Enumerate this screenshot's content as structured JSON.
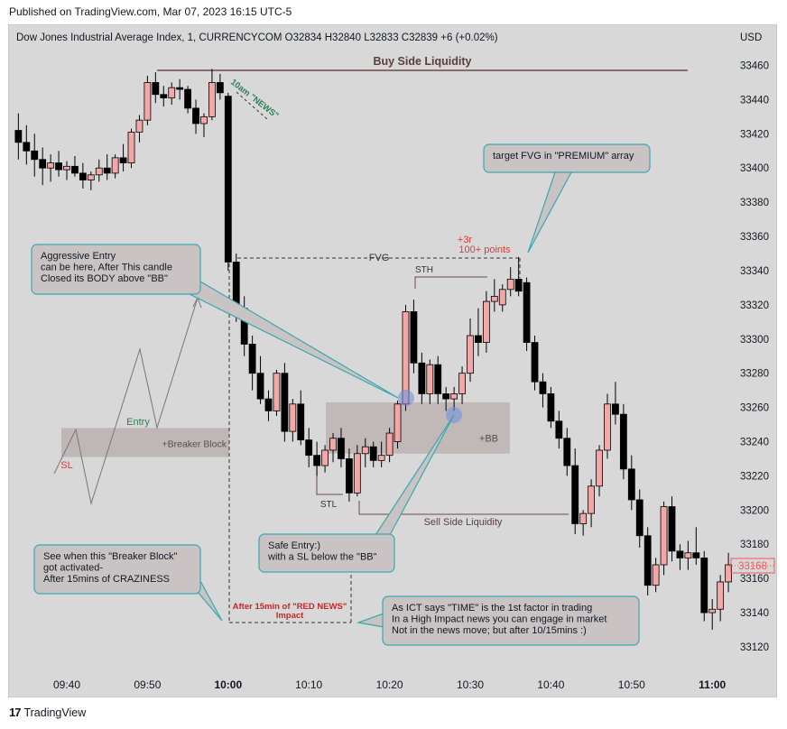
{
  "header": {
    "published": "Published on TradingView.com, Mar 07, 2023 16:15 UTC-5",
    "symbol_line": "Dow Jones Industrial Average Index, 1, CURRENCYCOM  O32834  H32840  L32833  C32839  +6 (+0.02%)",
    "currency": "USD"
  },
  "footer": {
    "logo": "17",
    "brand": "TradingView"
  },
  "colors": {
    "up": "#f4a7a7",
    "down": "#000000",
    "background": "#d8d8d8",
    "teal": "#3aa7b0",
    "red_label": "#e53935",
    "green_label": "#2e7d5a",
    "price_badge": "#f05a5a"
  },
  "annotations": {
    "buy_side_liquidity": "Buy Side Liquidity",
    "news_10am": "10am \"NEWS\"",
    "target_fvg": "target FVG in \"PREMIUM\" array",
    "plus3r": "+3r",
    "hundred_points": "100+ points",
    "fvg": "FVG",
    "sth": "STH",
    "aggressive_1": "Aggressive Entry",
    "aggressive_2": "can be here, After This candle",
    "aggressive_3": "Closed its BODY above \"BB\"",
    "entry": "Entry",
    "sl": "SL",
    "breaker_block": "+Breaker Block",
    "bb": "+BB",
    "stl": "STL",
    "sell_side_liquidity": "Sell Side Liquidity",
    "safe_1": "Safe Entry:)",
    "safe_2": "with a SL below the \"BB\"",
    "see_1": "See when this \"Breaker Block\"",
    "see_2": "got activated-",
    "see_3": "After 15mins of CRAZINESS",
    "red_news_1": "After 15min of \"RED NEWS\"",
    "red_news_2": "Impact",
    "ict_1": "As ICT says \"TIME\" is the 1st factor in trading",
    "ict_2": "In a High Impact news you can engage in market",
    "ict_3": "Not in the news move; but after 10/15mins :)"
  },
  "chart_data": {
    "type": "candlestick",
    "title": "Dow Jones Industrial Average Index, 1, CURRENCYCOM",
    "interval": "1 minute",
    "y_axis": {
      "ticks": [
        33460,
        33440,
        33420,
        33400,
        33380,
        33360,
        33340,
        33320,
        33300,
        33280,
        33260,
        33240,
        33220,
        33200,
        33180,
        33160,
        33140,
        33120
      ],
      "range": [
        33110,
        33470
      ],
      "last_price": "33168"
    },
    "x_axis": {
      "ticks": [
        "09:40",
        "09:50",
        "10:00",
        "10:10",
        "10:20",
        "10:30",
        "10:40",
        "10:50",
        "11:00"
      ],
      "bold": [
        "10:00",
        "11:00"
      ]
    },
    "candles": [
      {
        "t": "09:34",
        "o": 33422,
        "h": 33432,
        "l": 33405,
        "c": 33415
      },
      {
        "t": "09:35",
        "o": 33415,
        "h": 33425,
        "l": 33402,
        "c": 33410
      },
      {
        "t": "09:36",
        "o": 33410,
        "h": 33420,
        "l": 33395,
        "c": 33405
      },
      {
        "t": "09:37",
        "o": 33405,
        "h": 33412,
        "l": 33390,
        "c": 33400
      },
      {
        "t": "09:38",
        "o": 33400,
        "h": 33408,
        "l": 33392,
        "c": 33403
      },
      {
        "t": "09:39",
        "o": 33403,
        "h": 33410,
        "l": 33395,
        "c": 33399
      },
      {
        "t": "09:40",
        "o": 33399,
        "h": 33404,
        "l": 33393,
        "c": 33401
      },
      {
        "t": "09:41",
        "o": 33401,
        "h": 33407,
        "l": 33395,
        "c": 33397
      },
      {
        "t": "09:42",
        "o": 33397,
        "h": 33403,
        "l": 33388,
        "c": 33393
      },
      {
        "t": "09:43",
        "o": 33393,
        "h": 33398,
        "l": 33387,
        "c": 33396
      },
      {
        "t": "09:44",
        "o": 33396,
        "h": 33405,
        "l": 33392,
        "c": 33400
      },
      {
        "t": "09:45",
        "o": 33400,
        "h": 33408,
        "l": 33393,
        "c": 33397
      },
      {
        "t": "09:46",
        "o": 33397,
        "h": 33408,
        "l": 33394,
        "c": 33406
      },
      {
        "t": "09:47",
        "o": 33406,
        "h": 33414,
        "l": 33398,
        "c": 33403
      },
      {
        "t": "09:48",
        "o": 33403,
        "h": 33423,
        "l": 33400,
        "c": 33421
      },
      {
        "t": "09:49",
        "o": 33421,
        "h": 33431,
        "l": 33415,
        "c": 33428
      },
      {
        "t": "09:50",
        "o": 33428,
        "h": 33454,
        "l": 33425,
        "c": 33450
      },
      {
        "t": "09:51",
        "o": 33450,
        "h": 33456,
        "l": 33438,
        "c": 33443
      },
      {
        "t": "09:52",
        "o": 33443,
        "h": 33448,
        "l": 33436,
        "c": 33441
      },
      {
        "t": "09:53",
        "o": 33441,
        "h": 33450,
        "l": 33437,
        "c": 33447
      },
      {
        "t": "09:54",
        "o": 33447,
        "h": 33452,
        "l": 33440,
        "c": 33446
      },
      {
        "t": "09:55",
        "o": 33446,
        "h": 33448,
        "l": 33432,
        "c": 33435
      },
      {
        "t": "09:56",
        "o": 33435,
        "h": 33440,
        "l": 33420,
        "c": 33426
      },
      {
        "t": "09:57",
        "o": 33426,
        "h": 33432,
        "l": 33418,
        "c": 33430
      },
      {
        "t": "09:58",
        "o": 33430,
        "h": 33458,
        "l": 33428,
        "c": 33450
      },
      {
        "t": "09:59",
        "o": 33450,
        "h": 33455,
        "l": 33440,
        "c": 33444
      },
      {
        "t": "10:00",
        "o": 33442,
        "h": 33444,
        "l": 33340,
        "c": 33345
      },
      {
        "t": "10:01",
        "o": 33345,
        "h": 33350,
        "l": 33310,
        "c": 33318
      },
      {
        "t": "10:02",
        "o": 33318,
        "h": 33325,
        "l": 33290,
        "c": 33297
      },
      {
        "t": "10:03",
        "o": 33297,
        "h": 33302,
        "l": 33270,
        "c": 33280
      },
      {
        "t": "10:04",
        "o": 33280,
        "h": 33290,
        "l": 33262,
        "c": 33265
      },
      {
        "t": "10:05",
        "o": 33265,
        "h": 33270,
        "l": 33252,
        "c": 33258
      },
      {
        "t": "10:06",
        "o": 33258,
        "h": 33282,
        "l": 33255,
        "c": 33280
      },
      {
        "t": "10:07",
        "o": 33280,
        "h": 33286,
        "l": 33240,
        "c": 33246
      },
      {
        "t": "10:08",
        "o": 33246,
        "h": 33265,
        "l": 33240,
        "c": 33262
      },
      {
        "t": "10:09",
        "o": 33262,
        "h": 33270,
        "l": 33238,
        "c": 33241
      },
      {
        "t": "10:10",
        "o": 33241,
        "h": 33248,
        "l": 33225,
        "c": 33232
      },
      {
        "t": "10:11",
        "o": 33232,
        "h": 33240,
        "l": 33220,
        "c": 33226
      },
      {
        "t": "10:12",
        "o": 33226,
        "h": 33238,
        "l": 33222,
        "c": 33235
      },
      {
        "t": "10:13",
        "o": 33235,
        "h": 33245,
        "l": 33228,
        "c": 33242
      },
      {
        "t": "10:14",
        "o": 33242,
        "h": 33248,
        "l": 33225,
        "c": 33230
      },
      {
        "t": "10:15",
        "o": 33230,
        "h": 33236,
        "l": 33205,
        "c": 33210
      },
      {
        "t": "10:16",
        "o": 33210,
        "h": 33238,
        "l": 33208,
        "c": 33233
      },
      {
        "t": "10:17",
        "o": 33233,
        "h": 33242,
        "l": 33225,
        "c": 33237
      },
      {
        "t": "10:18",
        "o": 33237,
        "h": 33240,
        "l": 33225,
        "c": 33229
      },
      {
        "t": "10:19",
        "o": 33229,
        "h": 33240,
        "l": 33225,
        "c": 33232
      },
      {
        "t": "10:20",
        "o": 33232,
        "h": 33248,
        "l": 33228,
        "c": 33245
      },
      {
        "t": "10:21",
        "o": 33240,
        "h": 33264,
        "l": 33236,
        "c": 33262
      },
      {
        "t": "10:22",
        "o": 33262,
        "h": 33320,
        "l": 33258,
        "c": 33316
      },
      {
        "t": "10:23",
        "o": 33316,
        "h": 33323,
        "l": 33280,
        "c": 33286
      },
      {
        "t": "10:24",
        "o": 33286,
        "h": 33292,
        "l": 33262,
        "c": 33268
      },
      {
        "t": "10:25",
        "o": 33268,
        "h": 33288,
        "l": 33262,
        "c": 33285
      },
      {
        "t": "10:26",
        "o": 33285,
        "h": 33290,
        "l": 33262,
        "c": 33268
      },
      {
        "t": "10:27",
        "o": 33268,
        "h": 33272,
        "l": 33258,
        "c": 33265
      },
      {
        "t": "10:28",
        "o": 33265,
        "h": 33272,
        "l": 33258,
        "c": 33268
      },
      {
        "t": "10:29",
        "o": 33268,
        "h": 33284,
        "l": 33262,
        "c": 33280
      },
      {
        "t": "10:30",
        "o": 33280,
        "h": 33312,
        "l": 33275,
        "c": 33302
      },
      {
        "t": "10:31",
        "o": 33302,
        "h": 33318,
        "l": 33290,
        "c": 33298
      },
      {
        "t": "10:32",
        "o": 33298,
        "h": 33328,
        "l": 33292,
        "c": 33322
      },
      {
        "t": "10:33",
        "o": 33322,
        "h": 33335,
        "l": 33316,
        "c": 33325
      },
      {
        "t": "10:34",
        "o": 33320,
        "h": 33332,
        "l": 33316,
        "c": 33329
      },
      {
        "t": "10:35",
        "o": 33329,
        "h": 33342,
        "l": 33325,
        "c": 33335
      },
      {
        "t": "10:36",
        "o": 33335,
        "h": 33348,
        "l": 33325,
        "c": 33328
      },
      {
        "t": "10:37",
        "o": 33333,
        "h": 33336,
        "l": 33293,
        "c": 33298
      },
      {
        "t": "10:38",
        "o": 33298,
        "h": 33302,
        "l": 33270,
        "c": 33275
      },
      {
        "t": "10:39",
        "o": 33275,
        "h": 33280,
        "l": 33260,
        "c": 33268
      },
      {
        "t": "10:40",
        "o": 33268,
        "h": 33272,
        "l": 33248,
        "c": 33252
      },
      {
        "t": "10:41",
        "o": 33252,
        "h": 33258,
        "l": 33236,
        "c": 33242
      },
      {
        "t": "10:42",
        "o": 33242,
        "h": 33248,
        "l": 33220,
        "c": 33226
      },
      {
        "t": "10:43",
        "o": 33226,
        "h": 33236,
        "l": 33186,
        "c": 33192
      },
      {
        "t": "10:44",
        "o": 33192,
        "h": 33200,
        "l": 33185,
        "c": 33198
      },
      {
        "t": "10:45",
        "o": 33198,
        "h": 33218,
        "l": 33190,
        "c": 33214
      },
      {
        "t": "10:46",
        "o": 33214,
        "h": 33238,
        "l": 33208,
        "c": 33235
      },
      {
        "t": "10:47",
        "o": 33235,
        "h": 33268,
        "l": 33230,
        "c": 33262
      },
      {
        "t": "10:48",
        "o": 33262,
        "h": 33275,
        "l": 33250,
        "c": 33256
      },
      {
        "t": "10:49",
        "o": 33256,
        "h": 33262,
        "l": 33218,
        "c": 33224
      },
      {
        "t": "10:50",
        "o": 33224,
        "h": 33232,
        "l": 33200,
        "c": 33206
      },
      {
        "t": "10:51",
        "o": 33206,
        "h": 33212,
        "l": 33178,
        "c": 33185
      },
      {
        "t": "10:52",
        "o": 33185,
        "h": 33190,
        "l": 33150,
        "c": 33156
      },
      {
        "t": "10:53",
        "o": 33156,
        "h": 33172,
        "l": 33152,
        "c": 33168
      },
      {
        "t": "10:54",
        "o": 33168,
        "h": 33205,
        "l": 33162,
        "c": 33202
      },
      {
        "t": "10:55",
        "o": 33202,
        "h": 33208,
        "l": 33170,
        "c": 33176
      },
      {
        "t": "10:56",
        "o": 33176,
        "h": 33180,
        "l": 33165,
        "c": 33172
      },
      {
        "t": "10:57",
        "o": 33172,
        "h": 33182,
        "l": 33165,
        "c": 33175
      },
      {
        "t": "10:58",
        "o": 33175,
        "h": 33190,
        "l": 33168,
        "c": 33172
      },
      {
        "t": "10:59",
        "o": 33172,
        "h": 33176,
        "l": 33135,
        "c": 33140
      },
      {
        "t": "11:00",
        "o": 33140,
        "h": 33148,
        "l": 33130,
        "c": 33142
      },
      {
        "t": "11:01",
        "o": 33142,
        "h": 33162,
        "l": 33135,
        "c": 33158
      },
      {
        "t": "11:02",
        "o": 33158,
        "h": 33175,
        "l": 33152,
        "c": 33168
      }
    ]
  }
}
